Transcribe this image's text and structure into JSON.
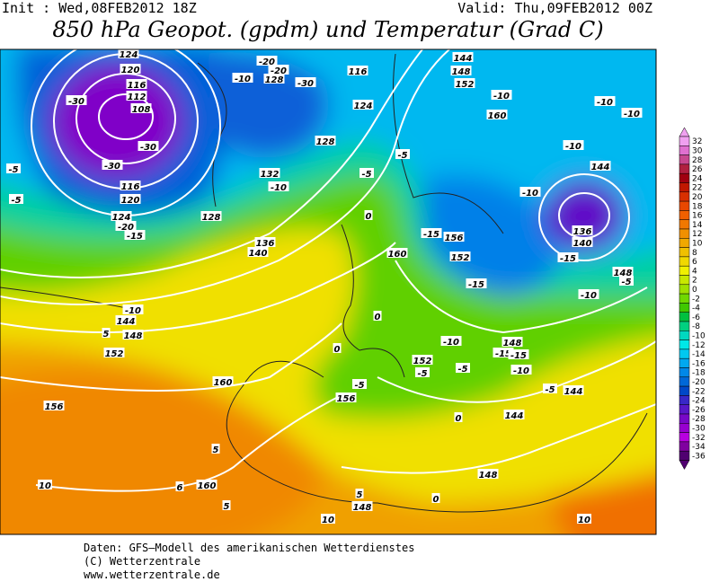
{
  "header": {
    "init": "Init : Wed,08FEB2012 18Z",
    "valid": "Valid: Thu,09FEB2012 00Z",
    "title": "850 hPa Geopot. (gpdm) und Temperatur (Grad C)"
  },
  "legend": {
    "levels": [
      32,
      30,
      28,
      26,
      24,
      22,
      20,
      18,
      16,
      14,
      12,
      10,
      8,
      6,
      4,
      2,
      0,
      -2,
      -4,
      -6,
      -8,
      -10,
      -12,
      -14,
      -16,
      -18,
      -20,
      -22,
      -24,
      -26,
      -28,
      -30,
      -32,
      -34,
      -36
    ],
    "colors": [
      "#f0a0f0",
      "#e070d0",
      "#c84890",
      "#b02040",
      "#a00010",
      "#c01800",
      "#d83000",
      "#e84800",
      "#f06000",
      "#f07800",
      "#f09000",
      "#f0a800",
      "#f0c000",
      "#f0d800",
      "#f0f000",
      "#c8e800",
      "#a0e000",
      "#70d800",
      "#40c800",
      "#00c040",
      "#00d080",
      "#00d8c0",
      "#00e8e8",
      "#00c8f0",
      "#00a8f0",
      "#0088e8",
      "#0068d8",
      "#0048c8",
      "#3828c8",
      "#5818c8",
      "#7808c8",
      "#9800d0",
      "#b800e0",
      "#8000a0",
      "#500070"
    ]
  },
  "map": {
    "labels": [
      "124",
      "120",
      "116",
      "112",
      "108",
      "-30",
      "-30",
      "-30",
      "116",
      "120",
      "124",
      "-20",
      "-15",
      "-5",
      "-5",
      "-10",
      "144",
      "148",
      "152",
      "156",
      "160",
      "160",
      "5",
      "10",
      "136",
      "140",
      "132",
      "128",
      "-20",
      "-20",
      "-10",
      "128",
      "-30",
      "116",
      "124",
      "128",
      "-10",
      "0",
      "-5",
      "-5",
      "160",
      "156",
      "152",
      "-15",
      "-15",
      "144",
      "148",
      "152",
      "-10",
      "160",
      "-10",
      "-10",
      "-10",
      "144",
      "-10",
      "136",
      "140",
      "-15",
      "148",
      "-5",
      "-10",
      "-10",
      "148",
      "-15",
      "-15",
      "-10",
      "-5",
      "144",
      "144",
      "152",
      "0",
      "0",
      "-5",
      "-5",
      "156",
      "-5",
      "0",
      "148",
      "0",
      "5",
      "148",
      "10",
      "10",
      "6",
      "5",
      "5"
    ]
  },
  "footer": {
    "lines": [
      "Daten: GFS–Modell des amerikanischen Wetterdienstes",
      "(C) Wetterzentrale",
      "www.wetterzentrale.de"
    ]
  }
}
